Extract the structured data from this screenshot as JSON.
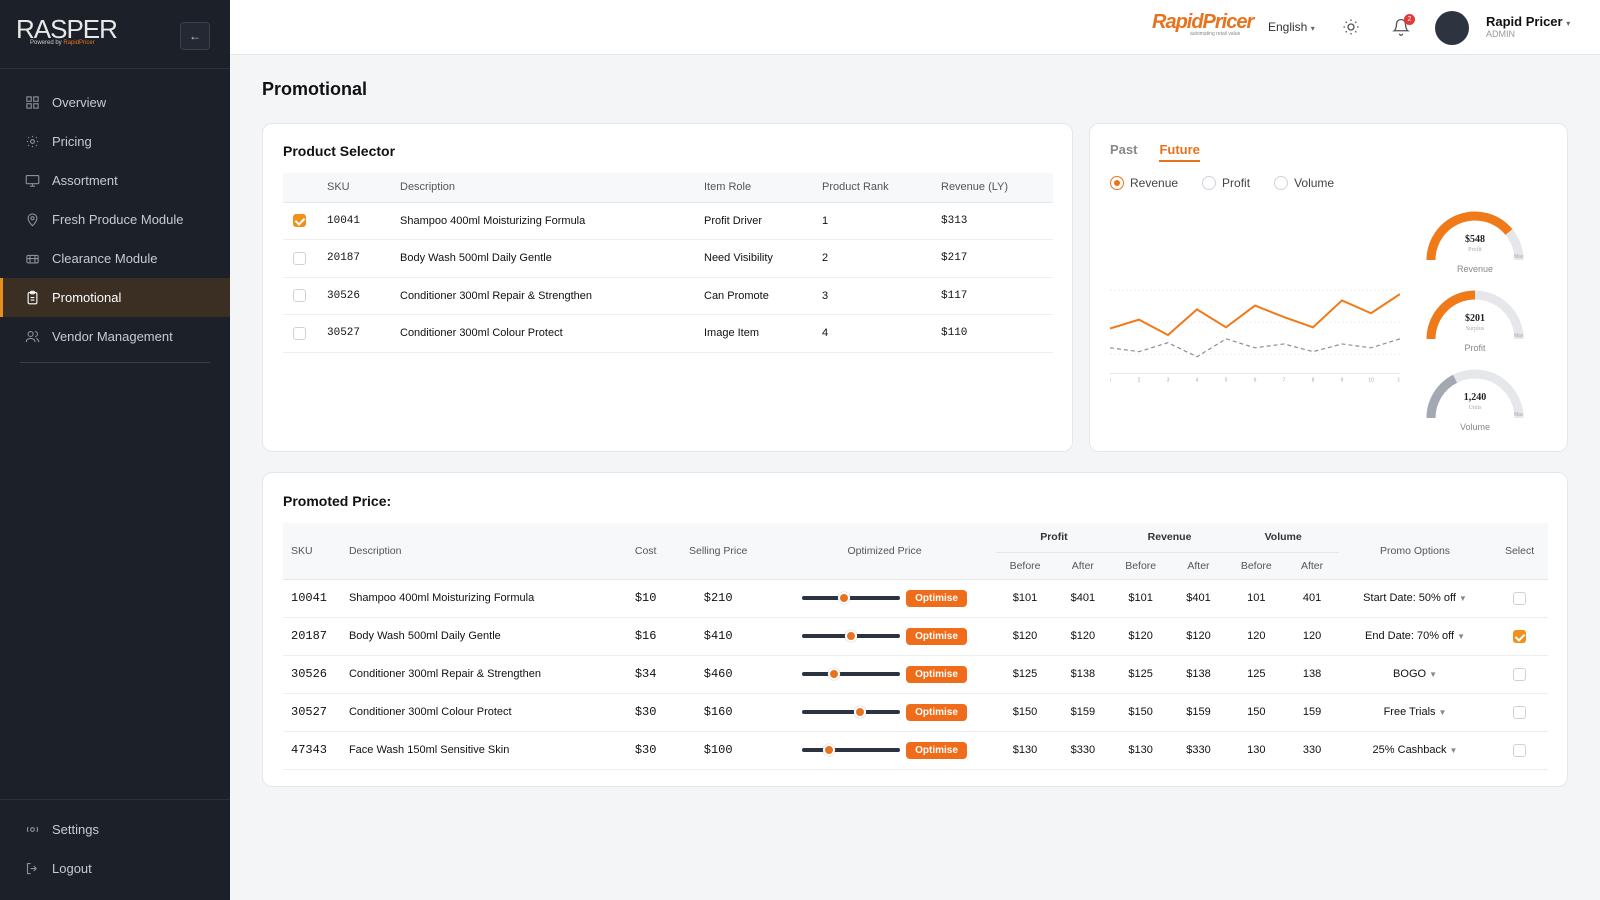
{
  "sidebar": {
    "logo": "RASPER",
    "logo_sub_prefix": "Powered by",
    "logo_sub_brand": "RapidPricer",
    "collapse_icon": "←",
    "items": [
      {
        "label": "Overview",
        "icon": "grid-icon"
      },
      {
        "label": "Pricing",
        "icon": "sun-icon"
      },
      {
        "label": "Assortment",
        "icon": "monitor-icon"
      },
      {
        "label": "Fresh Produce Module",
        "icon": "map-pin-icon"
      },
      {
        "label": "Clearance Module",
        "icon": "lifebuoy-icon"
      },
      {
        "label": "Promotional",
        "icon": "clipboard-icon",
        "active": true
      },
      {
        "label": "Vendor Management",
        "icon": "users-icon"
      }
    ],
    "bottom": [
      {
        "label": "Settings",
        "icon": "settings-icon"
      },
      {
        "label": "Logout",
        "icon": "logout-icon"
      }
    ]
  },
  "topbar": {
    "brand": "RapidPricer",
    "brand_tag": "automating retail value",
    "language": "English",
    "notifications": "2",
    "user_name": "Rapid Pricer",
    "user_role": "ADMIN"
  },
  "page": {
    "title": "Promotional"
  },
  "product_selector": {
    "title": "Product Selector",
    "headers": [
      "SKU",
      "Description",
      "Item Role",
      "Product Rank",
      "Revenue (LY)"
    ],
    "rows": [
      {
        "checked": true,
        "sku": "10041",
        "description": "Shampoo 400ml Moisturizing Formula",
        "role": "Profit Driver",
        "rank": "1",
        "revenue": "$313"
      },
      {
        "checked": false,
        "sku": "20187",
        "description": "Body Wash 500ml Daily Gentle",
        "role": "Need Visibility",
        "rank": "2",
        "revenue": "$217"
      },
      {
        "checked": false,
        "sku": "30526",
        "description": "Conditioner 300ml Repair & Strengthen",
        "role": "Can Promote",
        "rank": "3",
        "revenue": "$117"
      },
      {
        "checked": false,
        "sku": "30527",
        "description": "Conditioner 300ml Colour Protect",
        "role": "Image Item",
        "rank": "4",
        "revenue": "$110"
      }
    ]
  },
  "forecast": {
    "tabs": [
      "Past",
      "Future"
    ],
    "active_tab": "Future",
    "metrics": [
      "Revenue",
      "Profit",
      "Volume"
    ],
    "active_metric": "Revenue",
    "gauges": [
      {
        "value": "$548",
        "sub": "Profit",
        "label": "Revenue",
        "max": "Max",
        "fill": 0.78,
        "color": "#f07a1a"
      },
      {
        "value": "$201",
        "sub": "Surplus",
        "label": "Profit",
        "max": "Max",
        "fill": 0.5,
        "color": "#f07a1a"
      },
      {
        "value": "1,240",
        "sub": "Units",
        "label": "Volume",
        "max": "Max",
        "fill": 0.35,
        "color": "#a3a8b3"
      }
    ]
  },
  "chart_data": {
    "type": "line",
    "x": [
      1,
      2,
      3,
      4,
      5,
      6,
      7,
      8,
      9,
      10,
      11
    ],
    "series": [
      {
        "values": [
          55,
          62,
          50,
          70,
          56,
          73,
          64,
          56,
          77,
          67,
          82
        ],
        "color": "#f07a1a",
        "style": "solid"
      },
      {
        "values": [
          40,
          37,
          44,
          33,
          47,
          40,
          43,
          37,
          43,
          40,
          47
        ],
        "color": "#8a8f99",
        "style": "dashed"
      }
    ],
    "ylim": [
      0,
      100
    ],
    "grid": true,
    "xlabel": "",
    "ylabel": ""
  },
  "promoted": {
    "title": "Promoted Price:",
    "headers": {
      "sku": "SKU",
      "description": "Description",
      "cost": "Cost",
      "selling": "Selling Price",
      "optimized": "Optimized Price",
      "profit": "Profit",
      "revenue": "Revenue",
      "volume": "Volume",
      "before": "Before",
      "after": "After",
      "promo": "Promo Options",
      "select": "Select"
    },
    "optimise_label": "Optimise",
    "rows": [
      {
        "sku": "10041",
        "description": "Shampoo 400ml Moisturizing Formula",
        "cost": "$10",
        "selling": "$210",
        "slider": 0.42,
        "profit_before": "$101",
        "profit_after": "$401",
        "rev_before": "$101",
        "rev_after": "$401",
        "vol_before": "101",
        "vol_after": "401",
        "changed": true,
        "promo": "Start Date: 50% off",
        "selected": false
      },
      {
        "sku": "20187",
        "description": "Body Wash 500ml Daily Gentle",
        "cost": "$16",
        "selling": "$410",
        "slider": 0.5,
        "profit_before": "$120",
        "profit_after": "$120",
        "rev_before": "$120",
        "rev_after": "$120",
        "vol_before": "120",
        "vol_after": "120",
        "changed": false,
        "promo": "End Date: 70% off",
        "selected": true
      },
      {
        "sku": "30526",
        "description": "Conditioner 300ml Repair & Strengthen",
        "cost": "$34",
        "selling": "$460",
        "slider": 0.3,
        "profit_before": "$125",
        "profit_after": "$138",
        "rev_before": "$125",
        "rev_after": "$138",
        "vol_before": "125",
        "vol_after": "138",
        "changed": true,
        "promo": "BOGO",
        "selected": false
      },
      {
        "sku": "30527",
        "description": "Conditioner 300ml Colour Protect",
        "cost": "$30",
        "selling": "$160",
        "slider": 0.6,
        "profit_before": "$150",
        "profit_after": "$159",
        "rev_before": "$150",
        "rev_after": "$159",
        "vol_before": "150",
        "vol_after": "159",
        "changed": true,
        "promo": "Free Trials",
        "selected": false
      },
      {
        "sku": "47343",
        "description": "Face Wash 150ml Sensitive Skin",
        "cost": "$30",
        "selling": "$100",
        "slider": 0.24,
        "profit_before": "$130",
        "profit_after": "$330",
        "rev_before": "$130",
        "rev_after": "$330",
        "vol_before": "130",
        "vol_after": "330",
        "changed": true,
        "promo": "25% Cashback",
        "selected": false
      }
    ]
  }
}
